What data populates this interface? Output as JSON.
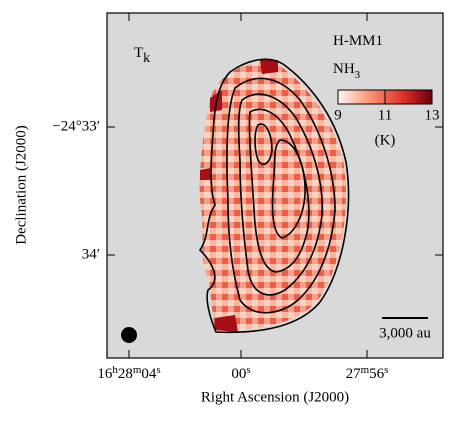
{
  "chart_data": {
    "type": "map",
    "panel_label": [
      "T",
      "k"
    ],
    "annotation_lines": [
      [
        "H-MM1"
      ],
      [
        "NH",
        "3"
      ]
    ],
    "xlabel": "Right Ascension (J2000)",
    "ylabel": "Declination (J2000)",
    "xticks": [
      [
        "16",
        "h",
        "28",
        "m",
        "04",
        "s"
      ],
      [
        "00",
        "s"
      ],
      [
        "27",
        "m",
        "56",
        "s"
      ]
    ],
    "yticks": [
      [
        "−24°33′"
      ],
      [
        "34′"
      ]
    ],
    "colorbar": {
      "clim": [
        9,
        13
      ],
      "ticks": [
        9,
        11,
        13
      ],
      "label": "(K)"
    },
    "scalebar_label": "3,000 au"
  }
}
